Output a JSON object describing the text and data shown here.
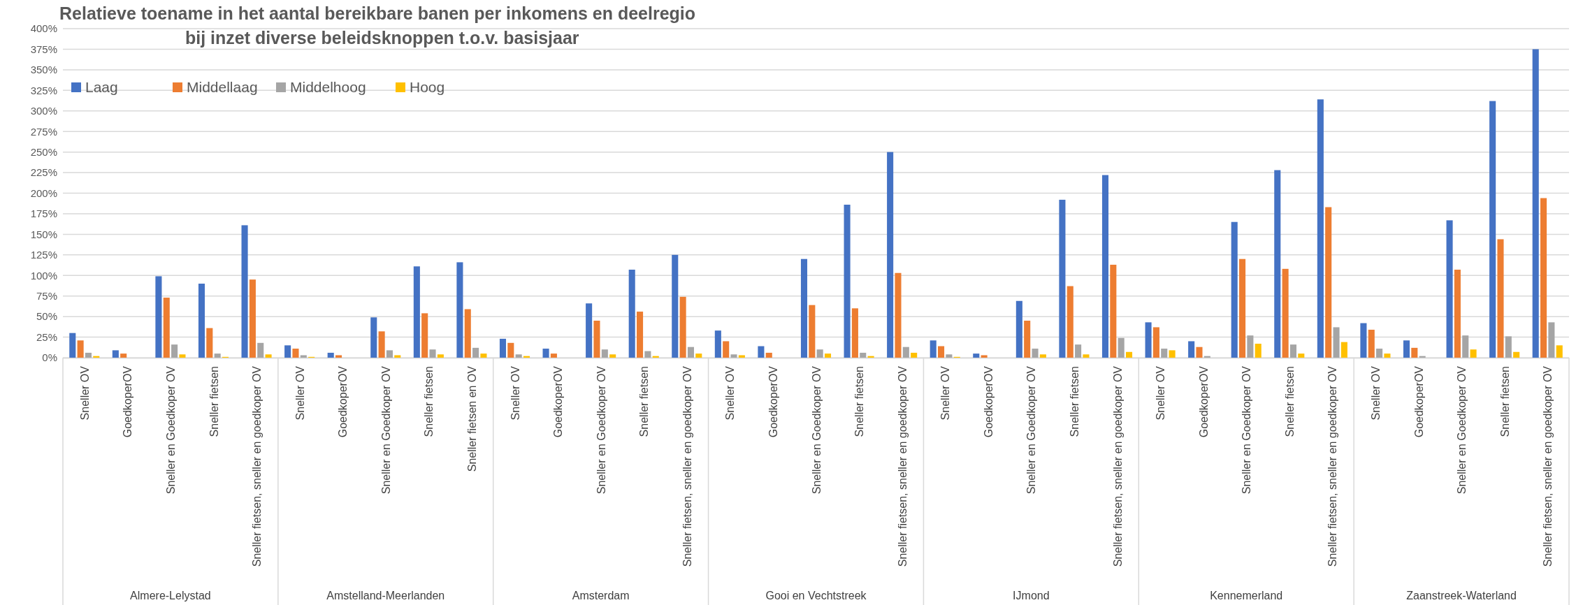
{
  "chart_data": {
    "type": "bar",
    "title": "Relatieve toename in het aantal bereikbare banen per inkomens en deelregio",
    "subtitle": "bij inzet diverse beleidsknoppen t.o.v. basisjaar",
    "categories": [
      "Sneller OV",
      "GoedkoperOV",
      "Sneller en Goedkoper OV",
      "Sneller fietsen",
      "Sneller fietsen, sneller en goedkoper OV",
      "Sneller OV",
      "GoedkoperOV",
      "Sneller en Goedkoper OV",
      "Sneller fietsen",
      "Sneller fietsen en OV",
      "Sneller OV",
      "GoedkoperOV",
      "Sneller en Goedkoper OV",
      "Sneller fietsen",
      "Sneller fietsen, sneller en goedkoper OV",
      "Sneller OV",
      "GoedkoperOV",
      "Sneller en Goedkoper OV",
      "Sneller fietsen",
      "Sneller fietsen, sneller en goedkoper OV",
      "Sneller OV",
      "GoedkoperOV",
      "Sneller en Goedkoper OV",
      "Sneller fietsen",
      "Sneller fietsen, sneller en goedkoper OV",
      "Sneller OV",
      "GoedkoperOV",
      "Sneller en Goedkoper OV",
      "Sneller fietsen",
      "Sneller fietsen, sneller en goedkoper OV",
      "Sneller OV",
      "GoedkoperOV",
      "Sneller en Goedkoper OV",
      "Sneller fietsen",
      "Sneller fietsen, sneller en goedkoper OV"
    ],
    "annotations": [
      "Almere-Lelystad",
      "Amstelland-Meerlanden",
      "Amsterdam",
      "Gooi en Vechtstreek",
      "IJmond",
      "Kennemerland",
      "Zaanstreek-Waterland"
    ],
    "series": [
      {
        "name": "Laag",
        "color": "#4472c4",
        "values": [
          30,
          9,
          99,
          90,
          161,
          15,
          6,
          49,
          111,
          116,
          23,
          11,
          66,
          107,
          125,
          33,
          14,
          120,
          186,
          250,
          21,
          5,
          69,
          192,
          222,
          43,
          20,
          165,
          228,
          314,
          42,
          21,
          167,
          312,
          375
        ]
      },
      {
        "name": "Middellaag",
        "color": "#ed7d31",
        "values": [
          21,
          5,
          73,
          36,
          95,
          11,
          3,
          32,
          54,
          59,
          18,
          5,
          45,
          56,
          74,
          20,
          6,
          64,
          60,
          103,
          14,
          3,
          45,
          87,
          113,
          37,
          13,
          120,
          108,
          183,
          34,
          12,
          107,
          144,
          194
        ]
      },
      {
        "name": "Middelhoog",
        "color": "#a5a5a5",
        "values": [
          6,
          0,
          16,
          5,
          18,
          3,
          0,
          9,
          10,
          12,
          4,
          0,
          10,
          8,
          13,
          4,
          0,
          10,
          6,
          13,
          4,
          0,
          11,
          16,
          24,
          11,
          2,
          27,
          16,
          37,
          11,
          2,
          27,
          26,
          43
        ]
      },
      {
        "name": "Hoog",
        "color": "#ffc000",
        "values": [
          2,
          0,
          4,
          1,
          4,
          1,
          0,
          3,
          4,
          5,
          2,
          0,
          4,
          2,
          5,
          3,
          0,
          5,
          2,
          6,
          1,
          0,
          4,
          4,
          7,
          9,
          0,
          17,
          5,
          19,
          5,
          0,
          10,
          7,
          15
        ]
      }
    ],
    "ylim": [
      0,
      400
    ],
    "yticks": [
      {
        "value": 0,
        "label": "0%"
      },
      {
        "value": 25,
        "label": "25%"
      },
      {
        "value": 50,
        "label": "50%"
      },
      {
        "value": 75,
        "label": "75%"
      },
      {
        "value": 100,
        "label": "100%"
      },
      {
        "value": 125,
        "label": "125%"
      },
      {
        "value": 150,
        "label": "150%"
      },
      {
        "value": 175,
        "label": "175%"
      },
      {
        "value": 200,
        "label": "200%"
      },
      {
        "value": 225,
        "label": "225%"
      },
      {
        "value": 250,
        "label": "250%"
      },
      {
        "value": 275,
        "label": "275%"
      },
      {
        "value": 300,
        "label": "300%"
      },
      {
        "value": 325,
        "label": "325%"
      },
      {
        "value": 350,
        "label": "350%"
      },
      {
        "value": 375,
        "label": "375%"
      },
      {
        "value": 400,
        "label": "400%"
      }
    ],
    "grid": "y",
    "legend": "top left"
  }
}
